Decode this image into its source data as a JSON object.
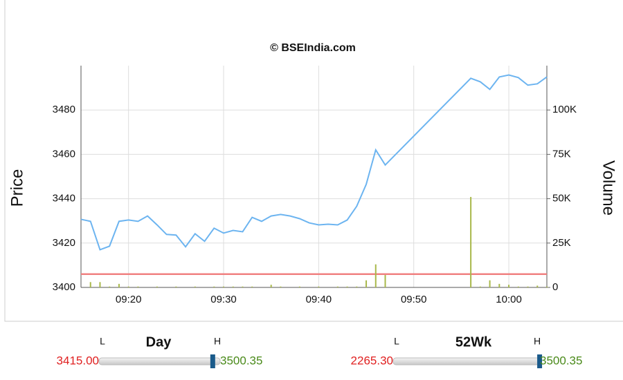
{
  "chart_data": {
    "type": "line",
    "title": "© BSEIndia.com",
    "y_label": "Price",
    "y2_label": "Volume",
    "x": [
      "09:15",
      "09:16",
      "09:17",
      "09:18",
      "09:19",
      "09:20",
      "09:21",
      "09:22",
      "09:23",
      "09:24",
      "09:25",
      "09:26",
      "09:27",
      "09:28",
      "09:29",
      "09:30",
      "09:31",
      "09:32",
      "09:33",
      "09:34",
      "09:35",
      "09:36",
      "09:37",
      "09:38",
      "09:39",
      "09:40",
      "09:41",
      "09:42",
      "09:43",
      "09:44",
      "09:45",
      "09:46",
      "09:47",
      "09:56",
      "09:57",
      "09:58",
      "09:59",
      "10:00",
      "10:01",
      "10:02",
      "10:03",
      "10:04"
    ],
    "xlim": [
      "09:15",
      "10:04"
    ],
    "xticks": [
      "09:20",
      "09:30",
      "09:40",
      "09:50",
      "10:00"
    ],
    "ylim": [
      3400,
      3500
    ],
    "yticks": [
      3400,
      3420,
      3440,
      3460,
      3480
    ],
    "y2lim": [
      0,
      125000
    ],
    "y2ticks": [
      0,
      {
        "value": 25000,
        "label": "25K"
      },
      {
        "value": 50000,
        "label": "50K"
      },
      {
        "value": 75000,
        "label": "75K"
      },
      {
        "value": 100000,
        "label": "100K"
      }
    ],
    "grid": true,
    "reference_line": {
      "value": 3406,
      "color": "#f08080"
    },
    "series": [
      {
        "type": "line",
        "color": "#6cb4f0",
        "values": [
          3430.7,
          3429.8,
          3417,
          3418.6,
          3429.8,
          3430.4,
          3429.8,
          3432.2,
          3428.2,
          3423.9,
          3423.6,
          3418.3,
          3424.2,
          3420.8,
          3426.7,
          3424.5,
          3425.7,
          3425.1,
          3431.6,
          3429.8,
          3432.2,
          3432.9,
          3432.2,
          3431,
          3429.1,
          3428.2,
          3428.5,
          3428.2,
          3430.4,
          3436.6,
          3446.5,
          3462,
          3455.2,
          3494.3,
          3492.7,
          3489.3,
          3494.9,
          3495.8,
          3494.6,
          3491.2,
          3491.8,
          3494.9
        ]
      },
      {
        "type": "bar",
        "axis": "y2",
        "color": "#a8b84a",
        "values": [
          0,
          3000,
          3000,
          500,
          2000,
          500,
          500,
          0,
          500,
          0,
          500,
          0,
          500,
          0,
          500,
          500,
          500,
          500,
          500,
          0,
          1500,
          500,
          0,
          500,
          0,
          500,
          0,
          500,
          500,
          500,
          4000,
          13000,
          7000,
          51000,
          500,
          4000,
          2000,
          1500,
          500,
          500,
          1000,
          500
        ]
      }
    ]
  },
  "ranges": [
    {
      "title": "Day",
      "low_tag": "L",
      "high_tag": "H",
      "low": "3415.00",
      "high": "3500.35"
    },
    {
      "title": "52Wk",
      "low_tag": "L",
      "high_tag": "H",
      "low": "2265.30",
      "high": "3500.35"
    }
  ]
}
